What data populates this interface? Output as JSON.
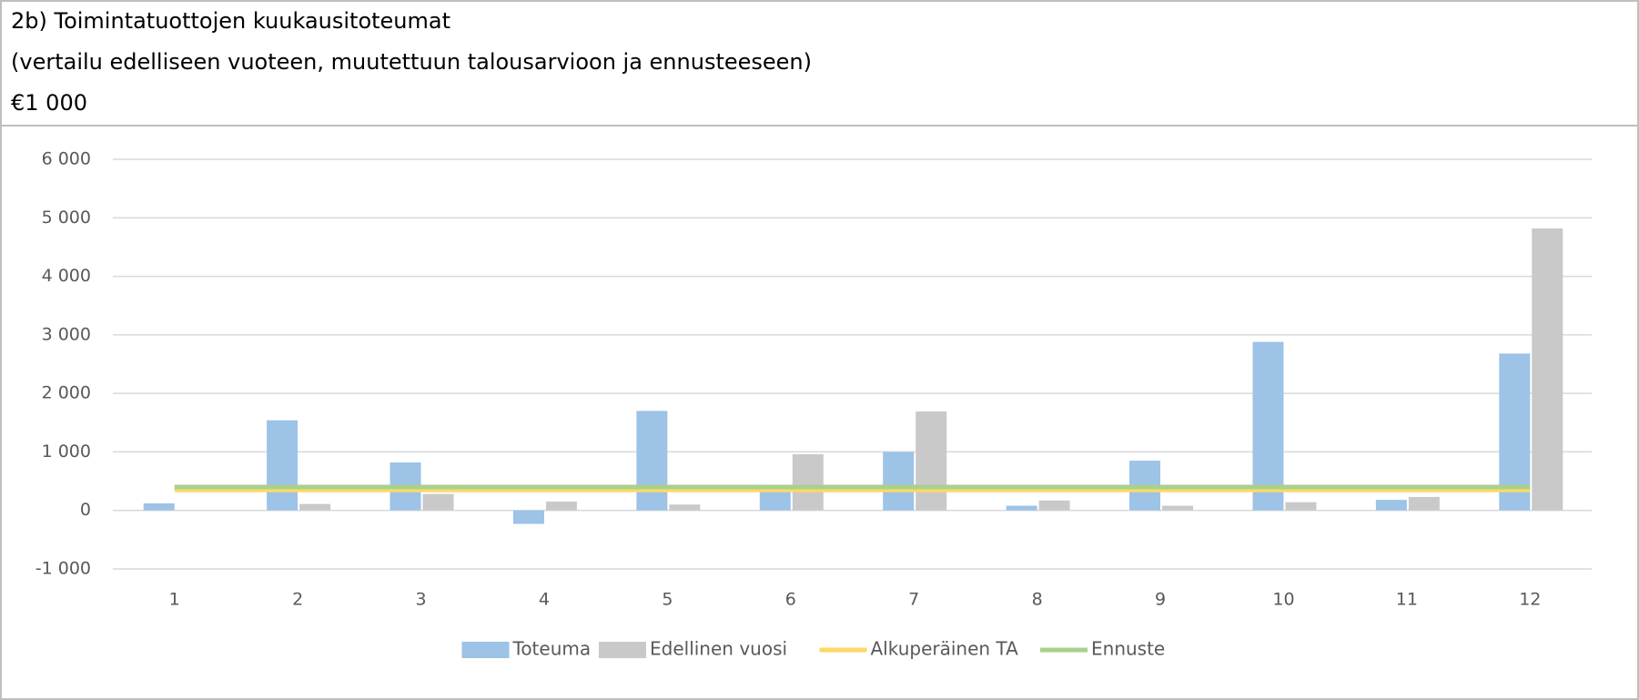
{
  "chart_data": {
    "type": "bar",
    "title": "2b) Toimintatuottojen kuukausitoteumat",
    "subtitle": "(vertailu edelliseen vuoteen, muutettuun talousarvioon ja ennusteeseen)",
    "units": "€1 000",
    "categories": [
      "1",
      "2",
      "3",
      "4",
      "5",
      "6",
      "7",
      "8",
      "9",
      "10",
      "11",
      "12"
    ],
    "series": [
      {
        "name": "Toteuma",
        "type": "bar",
        "color": "#9dc3e6",
        "values": [
          120,
          1540,
          820,
          -230,
          1700,
          400,
          1000,
          80,
          850,
          2880,
          180,
          2680
        ]
      },
      {
        "name": "Edellinen vuosi",
        "type": "bar",
        "color": "#c9c9c9",
        "values": [
          0,
          110,
          280,
          150,
          100,
          960,
          1690,
          170,
          80,
          140,
          230,
          4820
        ]
      },
      {
        "name": "Alkuperäinen TA",
        "type": "line",
        "color": "#ffd966",
        "values": [
          350,
          350,
          350,
          350,
          350,
          350,
          350,
          350,
          350,
          350,
          350,
          350
        ]
      },
      {
        "name": "Ennuste",
        "type": "line",
        "color": "#a9d18e",
        "values": [
          400,
          400,
          400,
          400,
          400,
          400,
          400,
          400,
          400,
          400,
          400,
          400
        ]
      }
    ],
    "ylim": [
      -1000,
      6000
    ],
    "yticks": [
      {
        "value": -1000,
        "label": "-1 000"
      },
      0,
      {
        "value": 1000,
        "label": "1 000"
      },
      {
        "value": 2000,
        "label": "2 000"
      },
      {
        "value": 3000,
        "label": "3 000"
      },
      {
        "value": 4000,
        "label": "4 000"
      },
      {
        "value": 5000,
        "label": "5 000"
      },
      {
        "value": 6000,
        "label": "6 000"
      }
    ],
    "grid": true,
    "legend": "bottom"
  }
}
